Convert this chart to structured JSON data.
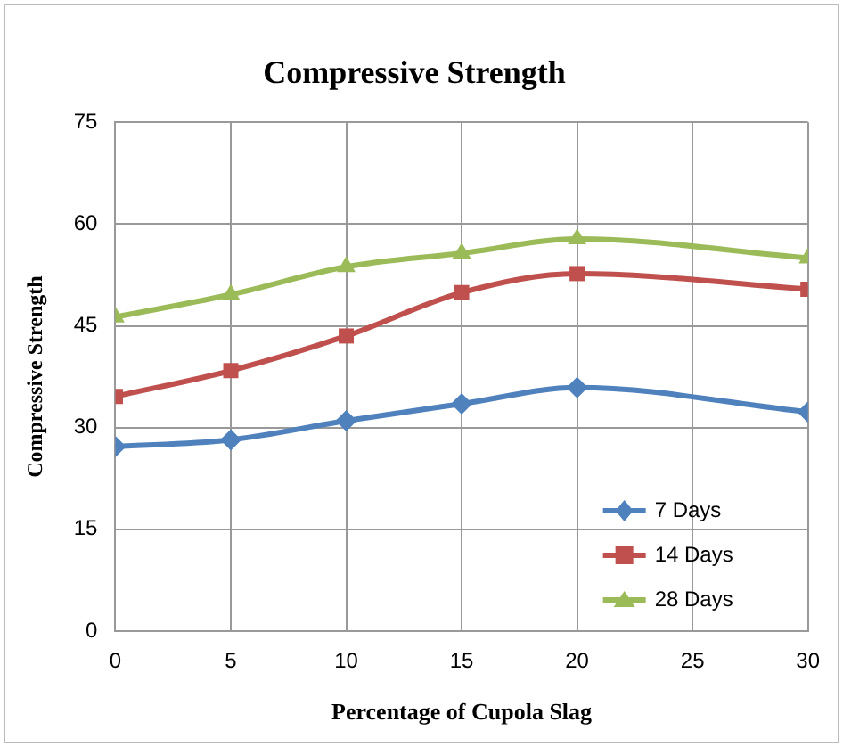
{
  "chart_data": {
    "type": "line",
    "title": "Compressive Strength",
    "xlabel": "Percentage of Cupola Slag",
    "ylabel": "Compressive Strength",
    "x": [
      0,
      5,
      10,
      15,
      20,
      30
    ],
    "series": [
      {
        "name": "7 Days",
        "color": "#4f81bd",
        "marker": "diamond",
        "values": [
          27.2,
          28.2,
          31.0,
          33.5,
          35.9,
          32.3
        ]
      },
      {
        "name": "14 Days",
        "color": "#c0504d",
        "marker": "square",
        "values": [
          34.6,
          38.4,
          43.5,
          49.9,
          52.7,
          50.4
        ]
      },
      {
        "name": "28 Days",
        "color": "#9bbb59",
        "marker": "triangle",
        "values": [
          46.3,
          49.6,
          53.7,
          55.7,
          57.8,
          55.0
        ]
      }
    ],
    "xlim": [
      0,
      30
    ],
    "xticks": [
      0,
      5,
      10,
      15,
      20,
      25,
      30
    ],
    "ylim": [
      0,
      75
    ],
    "yticks": [
      0,
      15,
      30,
      45,
      60,
      75
    ],
    "grid": true,
    "legend": "bottom right"
  }
}
